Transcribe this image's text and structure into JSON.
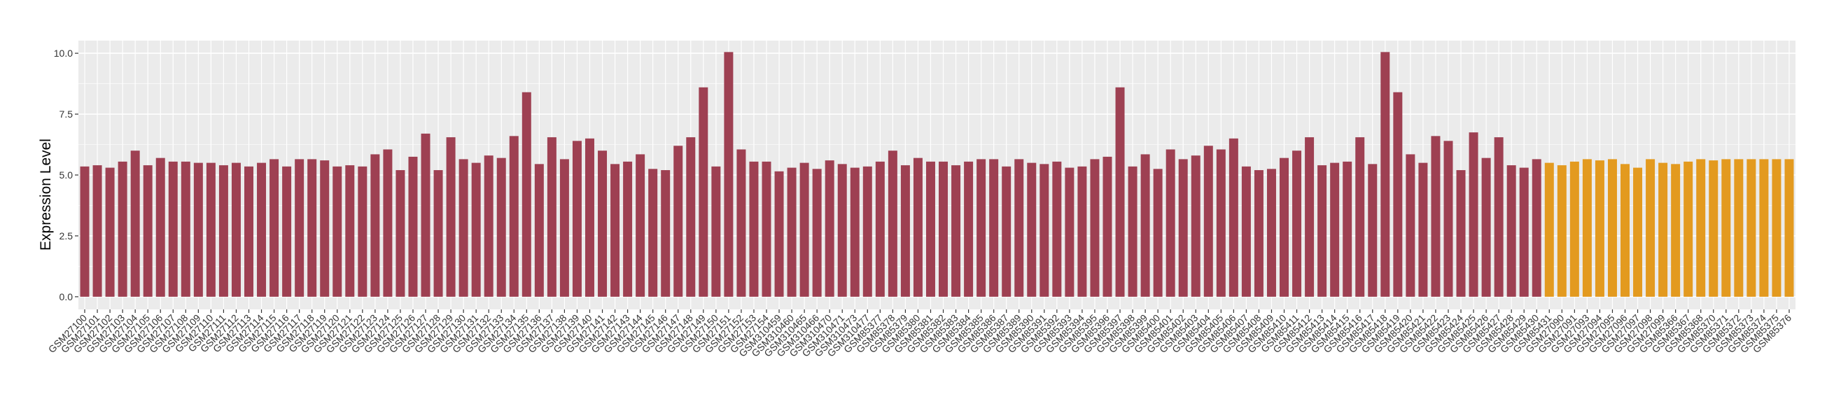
{
  "chart_data": {
    "type": "bar",
    "ylabel": "Expression Level",
    "xlabel": "",
    "title": "",
    "ylim": [
      0,
      10.5
    ],
    "yticks": [
      0.0,
      2.5,
      5.0,
      7.5,
      10.0
    ],
    "ytick_labels": [
      "0.0",
      "2.5",
      "5.0",
      "7.5",
      "10.0"
    ],
    "grid": true,
    "colors": {
      "group_a": "#9e4052",
      "group_b": "#e39a1f",
      "panel": "#ebebeb",
      "grid": "#ffffff"
    },
    "categories": [
      "GSM27100",
      "GSM27101",
      "GSM27102",
      "GSM27103",
      "GSM27104",
      "GSM27105",
      "GSM27106",
      "GSM27107",
      "GSM27108",
      "GSM27109",
      "GSM27110",
      "GSM27111",
      "GSM27112",
      "GSM27113",
      "GSM27114",
      "GSM27115",
      "GSM27116",
      "GSM27117",
      "GSM27118",
      "GSM27119",
      "GSM27120",
      "GSM27121",
      "GSM27122",
      "GSM27123",
      "GSM27124",
      "GSM27125",
      "GSM27126",
      "GSM27127",
      "GSM27128",
      "GSM27129",
      "GSM27130",
      "GSM27131",
      "GSM27132",
      "GSM27133",
      "GSM27134",
      "GSM27135",
      "GSM27136",
      "GSM27137",
      "GSM27138",
      "GSM27139",
      "GSM27140",
      "GSM27141",
      "GSM27142",
      "GSM27143",
      "GSM27144",
      "GSM27145",
      "GSM27146",
      "GSM27147",
      "GSM27148",
      "GSM27149",
      "GSM27150",
      "GSM27151",
      "GSM27152",
      "GSM27153",
      "GSM27154",
      "GSM310459",
      "GSM310460",
      "GSM310465",
      "GSM310466",
      "GSM310470",
      "GSM310471",
      "GSM310473",
      "GSM310477",
      "GSM85377",
      "GSM85378",
      "GSM85379",
      "GSM85380",
      "GSM85381",
      "GSM85382",
      "GSM85383",
      "GSM85384",
      "GSM85385",
      "GSM85386",
      "GSM85387",
      "GSM85389",
      "GSM85390",
      "GSM85391",
      "GSM85392",
      "GSM85393",
      "GSM85394",
      "GSM85395",
      "GSM85396",
      "GSM85397",
      "GSM85398",
      "GSM85399",
      "GSM85400",
      "GSM85401",
      "GSM85402",
      "GSM85403",
      "GSM85404",
      "GSM85405",
      "GSM85406",
      "GSM85407",
      "GSM85408",
      "GSM85409",
      "GSM85410",
      "GSM85411",
      "GSM85412",
      "GSM85413",
      "GSM85414",
      "GSM85415",
      "GSM85416",
      "GSM85417",
      "GSM85418",
      "GSM85419",
      "GSM85420",
      "GSM85421",
      "GSM85422",
      "GSM85423",
      "GSM85424",
      "GSM85425",
      "GSM85426",
      "GSM85427",
      "GSM85428",
      "GSM85429",
      "GSM85430",
      "GSM85431",
      "GSM27090",
      "GSM27091",
      "GSM27093",
      "GSM27094",
      "GSM27095",
      "GSM27096",
      "GSM27097",
      "GSM27098",
      "GSM27099",
      "GSM85366",
      "GSM85367",
      "GSM85368",
      "GSM85370",
      "GSM85371",
      "GSM85372",
      "GSM85373",
      "GSM85374",
      "GSM85375",
      "GSM85376"
    ],
    "values": [
      5.35,
      5.4,
      5.3,
      5.55,
      6.0,
      5.4,
      5.7,
      5.55,
      5.55,
      5.5,
      5.5,
      5.4,
      5.5,
      5.35,
      5.5,
      5.65,
      5.35,
      5.65,
      5.65,
      5.6,
      5.35,
      5.4,
      5.35,
      5.85,
      6.05,
      5.2,
      5.75,
      6.7,
      5.2,
      6.55,
      5.65,
      5.5,
      5.8,
      5.7,
      6.6,
      8.4,
      5.45,
      6.55,
      5.65,
      6.4,
      6.5,
      6.0,
      5.45,
      5.55,
      5.85,
      5.25,
      5.2,
      6.2,
      6.55,
      8.6,
      5.35,
      10.05,
      6.05,
      5.55,
      5.55,
      5.15,
      5.3,
      5.5,
      5.25,
      5.6,
      5.45,
      5.3,
      5.35,
      5.55,
      6.0,
      5.4,
      5.7,
      5.55,
      5.55,
      5.4,
      5.55,
      5.65,
      5.65,
      5.35,
      5.65,
      5.5,
      5.45,
      5.55,
      5.3,
      5.35,
      5.65,
      5.75,
      8.6,
      5.35,
      5.85,
      5.25,
      6.05,
      5.65,
      5.8,
      6.2,
      6.05,
      6.5,
      5.35,
      5.2,
      5.25,
      5.7,
      6.0,
      6.55,
      5.4,
      5.5,
      5.55,
      6.55,
      5.45,
      10.05,
      8.4,
      5.85,
      5.5,
      6.6,
      6.4,
      5.2,
      6.75,
      5.7,
      6.55,
      5.4,
      5.3,
      5.65,
      5.5,
      5.4,
      5.55,
      5.65,
      5.6,
      5.65,
      5.45,
      5.3,
      5.65,
      5.5,
      5.45,
      5.55,
      5.65,
      5.6,
      5.65,
      5.65,
      5.65,
      5.65,
      5.65,
      5.65
    ],
    "group_b_start": 116
  }
}
